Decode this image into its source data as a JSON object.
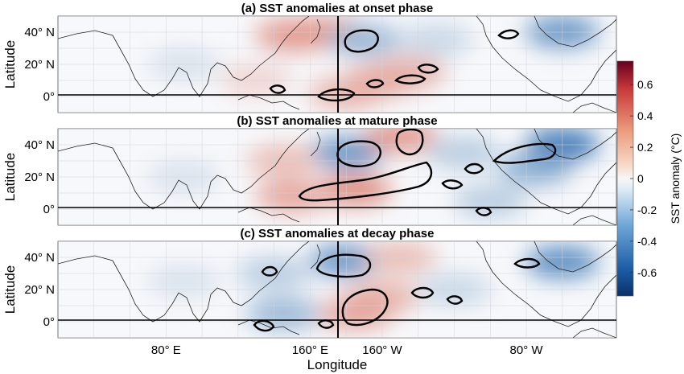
{
  "figure": {
    "ylabel": "Latitude",
    "xlabel": "Longitude",
    "colorbar_label": "SST anomaly (°C)",
    "colormap": "blue-white-red diverging",
    "colors": {
      "neg": "#2c6db0",
      "pos": "#d6604d",
      "contour": "#000000",
      "coast": "#222222"
    }
  },
  "chart_data": [
    {
      "type": "heatmap",
      "title": "(a) SST anomalies at onset phase",
      "xlabel": "",
      "ylabel": "Latitude",
      "y_ticks": [
        "40° N",
        "20° N",
        "0°"
      ],
      "x_ticks": [],
      "grid": true,
      "reference_lines": [
        "equator",
        "dateline"
      ],
      "blobs": [
        {
          "lon": 170,
          "lat": 40,
          "value": 0.35
        },
        {
          "lon": 190,
          "lat": 35,
          "value": -0.3
        },
        {
          "lon": 150,
          "lat": 38,
          "value": 0.4
        },
        {
          "lon": 200,
          "lat": 10,
          "value": 0.35
        },
        {
          "lon": 215,
          "lat": 15,
          "value": 0.3
        },
        {
          "lon": 180,
          "lat": 2,
          "value": 0.3
        },
        {
          "lon": 300,
          "lat": 40,
          "value": -0.45
        },
        {
          "lon": 90,
          "lat": 20,
          "value": -0.1
        },
        {
          "lon": 230,
          "lat": 35,
          "value": -0.15
        },
        {
          "lon": 130,
          "lat": 10,
          "value": 0.15
        }
      ]
    },
    {
      "type": "heatmap",
      "title": "(b) SST anomalies at mature phase",
      "xlabel": "",
      "ylabel": "Latitude",
      "y_ticks": [
        "40° N",
        "20° N",
        "0°"
      ],
      "x_ticks": [],
      "grid": true,
      "reference_lines": [
        "equator",
        "dateline"
      ],
      "blobs": [
        {
          "lon": 180,
          "lat": 35,
          "value": -0.45
        },
        {
          "lon": 210,
          "lat": 45,
          "value": 0.4
        },
        {
          "lon": 185,
          "lat": 12,
          "value": 0.45
        },
        {
          "lon": 150,
          "lat": 8,
          "value": 0.35
        },
        {
          "lon": 300,
          "lat": 40,
          "value": -0.6
        },
        {
          "lon": 285,
          "lat": 25,
          "value": -0.35
        },
        {
          "lon": 245,
          "lat": 35,
          "value": -0.2
        },
        {
          "lon": 145,
          "lat": 30,
          "value": 0.25
        },
        {
          "lon": 260,
          "lat": 5,
          "value": -0.2
        },
        {
          "lon": 90,
          "lat": 20,
          "value": -0.1
        }
      ]
    },
    {
      "type": "heatmap",
      "title": "(c) SST anomalies at decay phase",
      "xlabel": "Longitude",
      "ylabel": "Latitude",
      "y_ticks": [
        "40° N",
        "20° N",
        "0°"
      ],
      "x_ticks": [
        "80° E",
        "160° E",
        "160° W",
        "80° W"
      ],
      "grid": true,
      "reference_lines": [
        "equator",
        "dateline"
      ],
      "blobs": [
        {
          "lon": 180,
          "lat": 38,
          "value": -0.45
        },
        {
          "lon": 200,
          "lat": 15,
          "value": 0.3
        },
        {
          "lon": 185,
          "lat": 5,
          "value": 0.35
        },
        {
          "lon": 210,
          "lat": 40,
          "value": 0.25
        },
        {
          "lon": 300,
          "lat": 37,
          "value": -0.5
        },
        {
          "lon": 240,
          "lat": 20,
          "value": -0.15
        },
        {
          "lon": 140,
          "lat": 30,
          "value": -0.2
        },
        {
          "lon": 145,
          "lat": 5,
          "value": -0.3
        },
        {
          "lon": 90,
          "lat": 25,
          "value": -0.1
        }
      ]
    }
  ],
  "colorbar": {
    "min": -0.75,
    "max": 0.75,
    "ticks": [
      {
        "value": 0.6,
        "label": "0.6"
      },
      {
        "value": 0.4,
        "label": "0.4"
      },
      {
        "value": 0.2,
        "label": "0.2"
      },
      {
        "value": 0,
        "label": "0"
      },
      {
        "value": -0.2,
        "label": "-0.2"
      },
      {
        "value": -0.4,
        "label": "-0.4"
      },
      {
        "value": -0.6,
        "label": "-0.6"
      }
    ]
  }
}
